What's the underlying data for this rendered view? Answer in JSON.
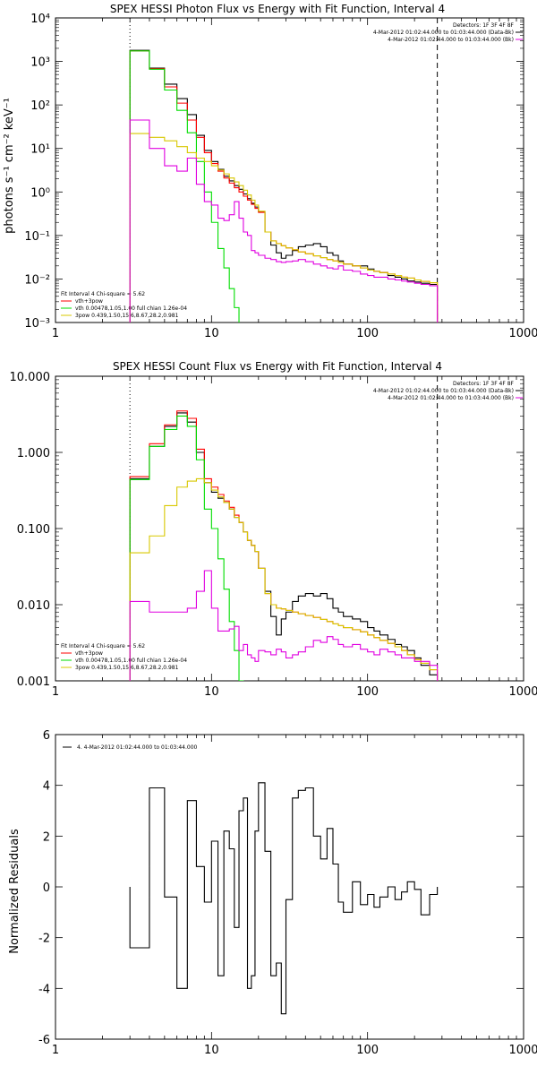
{
  "colors": {
    "black": "#000000",
    "red": "#ff0000",
    "green": "#00dd00",
    "yellow": "#d8c800",
    "magenta": "#e000e0",
    "orange": "#e08000"
  },
  "panels": [
    {
      "title": "SPEX HESSI Photon Flux vs Energy with Fit Function, Interval 4",
      "ylabel": "photons s⁻¹ cm⁻² keV⁻¹",
      "legend_top": [
        "Detectors: 1F 3F 4F 8F",
        "4-Mar-2012 01:02:44.000 to 01:03:44.000 (Data-Bk)",
        "4-Mar-2012 01:02:44.000 to 01:03:44.000 (Bk)"
      ],
      "legend_bottom": [
        "Fit Interval 4   Chi-square = 5.62",
        "vth+3pow",
        "vth 0.00478,1.05,1.00  full chian 1.26e-04",
        "3pow 0.439,1.50,15.6,8.67,28.2,0.981"
      ]
    },
    {
      "title": "SPEX HESSI Count Flux vs Energy with Fit Function, Interval 4",
      "ylabel": "",
      "legend_top": [
        "Detectors: 1F 3F 4F 8F",
        "4-Mar-2012 01:02:44.000 to 01:03:44.000 (Data-Bk)",
        "4-Mar-2012 01:02:44.000 to 01:03:44.000 (Bk)"
      ],
      "legend_bottom": [
        "Fit Interval 4   Chi-square = 5.62",
        "vth+3pow",
        "vth 0.00478,1.05,1.00  full chian 1.26e-04",
        "3pow 0.439,1.50,15.6,8.67,28.2,0.981"
      ]
    },
    {
      "title": "",
      "ylabel": "Normalized Residuals",
      "legend_top": [
        "4.  4-Mar-2012 01:02:44.000 to 01:03:44.000"
      ],
      "legend_bottom": []
    }
  ],
  "chart_data": [
    {
      "type": "line",
      "title": "SPEX HESSI Photon Flux vs Energy with Fit Function, Interval 4",
      "xlabel": "",
      "ylabel": "photons s⁻¹ cm⁻² keV⁻¹",
      "xscale": "log",
      "yscale": "log",
      "xlim": [
        1,
        1000
      ],
      "ylim": [
        0.001,
        10000
      ],
      "x_tick_labels": [
        "1",
        "10",
        "100",
        "1000"
      ],
      "y_tick_labels": [
        "10⁻³",
        "10⁻²",
        "10⁻¹",
        "10⁰",
        "10¹",
        "10²",
        "10³",
        "10⁴"
      ],
      "vlines": [
        {
          "x": 3,
          "style": "dotted"
        },
        {
          "x": 280,
          "style": "dashed"
        }
      ],
      "legend_placement": "top-right and bottom-left",
      "edges": [
        3,
        4,
        5,
        6,
        7,
        8,
        9,
        10,
        11,
        12,
        13,
        14,
        15,
        16,
        17,
        18,
        19,
        20,
        22,
        24,
        26,
        28,
        30,
        33,
        36,
        40,
        45,
        50,
        55,
        60,
        65,
        70,
        80,
        90,
        100,
        110,
        120,
        135,
        150,
        165,
        180,
        200,
        220,
        250,
        280
      ],
      "series": [
        {
          "name": "Data-Bk",
          "color": "black",
          "values": [
            1800,
            700,
            300,
            140,
            60,
            20,
            9,
            5,
            3.3,
            2.3,
            1.8,
            1.4,
            1.15,
            0.9,
            0.7,
            0.55,
            0.45,
            0.35,
            0.12,
            0.06,
            0.04,
            0.03,
            0.035,
            0.045,
            0.055,
            0.06,
            0.065,
            0.055,
            0.04,
            0.035,
            0.026,
            0.022,
            0.02,
            0.02,
            0.017,
            0.015,
            0.014,
            0.012,
            0.011,
            0.01,
            0.009,
            0.0085,
            0.008,
            0.0075
          ]
        },
        {
          "name": "vth+3pow",
          "color": "red",
          "values": [
            1750,
            680,
            260,
            110,
            45,
            18,
            8,
            4.5,
            3.0,
            2.1,
            1.6,
            1.25,
            1.0,
            0.8,
            0.65,
            0.52,
            0.42,
            0.34,
            0.12,
            0.075,
            0.065,
            0.058,
            0.052,
            0.047,
            0.042,
            0.038,
            0.034,
            0.031,
            0.028,
            0.026,
            0.024,
            0.022,
            0.02,
            0.018,
            0.016,
            0.015,
            0.014,
            0.013,
            0.012,
            0.011,
            0.0105,
            0.0095,
            0.0088,
            0.0082
          ]
        },
        {
          "name": "vth",
          "color": "green",
          "values": [
            1750,
            660,
            220,
            75,
            23,
            5,
            1.0,
            0.2,
            0.05,
            0.018,
            0.006,
            0.0022,
            0.0009,
            0.0004
          ]
        },
        {
          "name": "3pow",
          "color": "yellow",
          "values": [
            22,
            18,
            15,
            11,
            8,
            6,
            5,
            4,
            3.2,
            2.6,
            2.1,
            1.7,
            1.4,
            1.1,
            0.85,
            0.65,
            0.5,
            0.36,
            0.12,
            0.075,
            0.065,
            0.058,
            0.052,
            0.047,
            0.042,
            0.038,
            0.034,
            0.031,
            0.028,
            0.026,
            0.024,
            0.022,
            0.02,
            0.018,
            0.016,
            0.015,
            0.014,
            0.013,
            0.012,
            0.011,
            0.0105,
            0.0095,
            0.0088,
            0.0082
          ]
        },
        {
          "name": "Bk",
          "color": "magenta",
          "values": [
            45,
            10,
            4,
            3,
            6,
            1.5,
            0.6,
            0.5,
            0.25,
            0.22,
            0.3,
            0.6,
            0.25,
            0.12,
            0.1,
            0.045,
            0.04,
            0.035,
            0.03,
            0.028,
            0.025,
            0.024,
            0.025,
            0.026,
            0.028,
            0.025,
            0.022,
            0.02,
            0.018,
            0.017,
            0.02,
            0.016,
            0.015,
            0.013,
            0.012,
            0.011,
            0.011,
            0.01,
            0.0095,
            0.009,
            0.0085,
            0.008,
            0.0075,
            0.007
          ]
        }
      ]
    },
    {
      "type": "line",
      "title": "SPEX HESSI Count Flux vs Energy with Fit Function, Interval 4",
      "xlabel": "",
      "ylabel": "",
      "xscale": "log",
      "yscale": "log",
      "xlim": [
        1,
        1000
      ],
      "ylim": [
        0.001,
        10
      ],
      "x_tick_labels": [
        "1",
        "10",
        "100",
        "1000"
      ],
      "y_tick_labels": [
        "0.001",
        "0.010",
        "0.100",
        "1.000",
        "10.000"
      ],
      "vlines": [
        {
          "x": 3,
          "style": "dotted"
        },
        {
          "x": 280,
          "style": "dashed"
        }
      ],
      "legend_placement": "top-right and bottom-left",
      "edges": [
        3,
        4,
        5,
        6,
        7,
        8,
        9,
        10,
        11,
        12,
        13,
        14,
        15,
        16,
        17,
        18,
        19,
        20,
        22,
        24,
        26,
        28,
        30,
        33,
        36,
        40,
        45,
        50,
        55,
        60,
        65,
        70,
        80,
        90,
        100,
        110,
        120,
        135,
        150,
        165,
        180,
        200,
        220,
        250,
        280
      ],
      "series": [
        {
          "name": "Data-Bk",
          "color": "black",
          "values": [
            0.45,
            1.2,
            2.2,
            3.3,
            2.5,
            1.0,
            0.4,
            0.3,
            0.25,
            0.22,
            0.18,
            0.14,
            0.12,
            0.09,
            0.07,
            0.06,
            0.05,
            0.03,
            0.015,
            0.007,
            0.004,
            0.0065,
            0.008,
            0.011,
            0.013,
            0.014,
            0.013,
            0.014,
            0.012,
            0.009,
            0.008,
            0.007,
            0.0065,
            0.006,
            0.005,
            0.0045,
            0.004,
            0.0035,
            0.003,
            0.0028,
            0.0025,
            0.002,
            0.0016,
            0.0012
          ]
        },
        {
          "name": "vth+3pow",
          "color": "red",
          "values": [
            0.48,
            1.3,
            2.3,
            3.5,
            2.8,
            1.1,
            0.45,
            0.35,
            0.28,
            0.23,
            0.19,
            0.15,
            0.12,
            0.09,
            0.07,
            0.06,
            0.05,
            0.03,
            0.014,
            0.01,
            0.009,
            0.0088,
            0.0084,
            0.008,
            0.0076,
            0.0072,
            0.0068,
            0.0064,
            0.006,
            0.0056,
            0.0053,
            0.005,
            0.0047,
            0.0044,
            0.004,
            0.0037,
            0.0034,
            0.0031,
            0.0028,
            0.0025,
            0.0022,
            0.0019,
            0.0017,
            0.0014
          ]
        },
        {
          "name": "vth",
          "color": "green",
          "values": [
            0.44,
            1.2,
            2.0,
            3.0,
            2.2,
            0.8,
            0.18,
            0.1,
            0.04,
            0.016,
            0.006,
            0.0025,
            0.001
          ]
        },
        {
          "name": "3pow",
          "color": "yellow",
          "values": [
            0.048,
            0.08,
            0.2,
            0.35,
            0.42,
            0.45,
            0.4,
            0.32,
            0.26,
            0.22,
            0.18,
            0.14,
            0.12,
            0.09,
            0.07,
            0.06,
            0.05,
            0.03,
            0.014,
            0.01,
            0.009,
            0.0088,
            0.0084,
            0.008,
            0.0076,
            0.0072,
            0.0068,
            0.0064,
            0.006,
            0.0056,
            0.0053,
            0.005,
            0.0047,
            0.0044,
            0.004,
            0.0037,
            0.0034,
            0.0031,
            0.0028,
            0.0025,
            0.0022,
            0.0019,
            0.0017,
            0.0014
          ]
        },
        {
          "name": "Bk",
          "color": "magenta",
          "values": [
            0.011,
            0.008,
            0.008,
            0.008,
            0.009,
            0.015,
            0.028,
            0.009,
            0.0045,
            0.0045,
            0.0048,
            0.0052,
            0.0025,
            0.003,
            0.0022,
            0.002,
            0.0018,
            0.0025,
            0.0024,
            0.0022,
            0.0026,
            0.0024,
            0.002,
            0.0022,
            0.0024,
            0.0028,
            0.0034,
            0.0032,
            0.0038,
            0.0035,
            0.003,
            0.0028,
            0.003,
            0.0026,
            0.0024,
            0.0022,
            0.0026,
            0.0024,
            0.0022,
            0.002,
            0.002,
            0.0018,
            0.0018,
            0.0016
          ]
        }
      ]
    },
    {
      "type": "line",
      "title": "",
      "xlabel": "",
      "ylabel": "Normalized Residuals",
      "xscale": "log",
      "yscale": "linear",
      "xlim": [
        1,
        1000
      ],
      "ylim": [
        -6,
        6
      ],
      "x_tick_labels": [
        "1",
        "10",
        "100",
        "1000"
      ],
      "y_tick_labels": [
        "-6",
        "-4",
        "-2",
        "0",
        "2",
        "4",
        "6"
      ],
      "legend_placement": "top-left",
      "edges": [
        3,
        4,
        5,
        6,
        7,
        8,
        9,
        10,
        11,
        12,
        13,
        14,
        15,
        16,
        17,
        18,
        19,
        20,
        22,
        24,
        26,
        28,
        30,
        33,
        36,
        40,
        45,
        50,
        55,
        60,
        65,
        70,
        80,
        90,
        100,
        110,
        120,
        135,
        150,
        165,
        180,
        200,
        220,
        250,
        280
      ],
      "series": [
        {
          "name": "4.  4-Mar-2012 01:02:44.000 to 01:03:44.000",
          "color": "black",
          "values": [
            -2.4,
            3.9,
            -0.4,
            -4.0,
            3.4,
            0.8,
            -0.6,
            1.8,
            -3.5,
            2.2,
            1.5,
            -1.6,
            3.0,
            3.5,
            -4.0,
            -3.5,
            2.2,
            4.1,
            1.4,
            -3.5,
            -3.0,
            -5.0,
            -0.5,
            3.5,
            3.8,
            3.9,
            2.0,
            1.1,
            2.3,
            0.9,
            -0.6,
            -1.0,
            0.2,
            -0.7,
            -0.3,
            -0.8,
            -0.4,
            0.0,
            -0.5,
            -0.2,
            0.2,
            -0.1,
            -1.1,
            -0.3
          ]
        }
      ]
    }
  ]
}
